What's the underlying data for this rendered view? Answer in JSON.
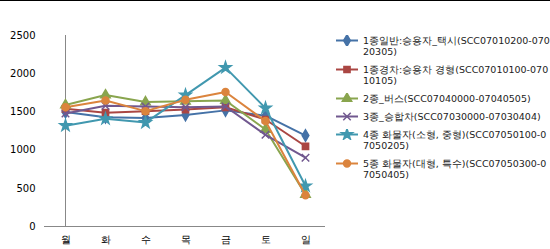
{
  "chart_data": {
    "type": "line",
    "categories": [
      "월",
      "화",
      "수",
      "목",
      "금",
      "토",
      "일"
    ],
    "ylim": [
      0,
      2500
    ],
    "yticks": [
      0,
      500,
      1000,
      1500,
      2000,
      2500
    ],
    "grid": false,
    "legend": "right",
    "series": [
      {
        "name": "1종일반:승용자_택시(SCC07010200-07020305)",
        "color": "#4572a7",
        "marker": "diamond",
        "values": [
          1500,
          1430,
          1420,
          1460,
          1520,
          1450,
          1190
        ]
      },
      {
        "name": "1종경차:승용차 경형(SCC07010100-07010105)",
        "color": "#aa4643",
        "marker": "square",
        "values": [
          1540,
          1490,
          1510,
          1530,
          1560,
          1400,
          1050
        ]
      },
      {
        "name": "2종_버스(SCC07040000-07040505)",
        "color": "#89a54e",
        "marker": "triangle",
        "values": [
          1590,
          1720,
          1630,
          1640,
          1650,
          1270,
          420
        ]
      },
      {
        "name": "3종_승합차(SCC07030000-07030404)",
        "color": "#71588f",
        "marker": "times",
        "values": [
          1480,
          1580,
          1570,
          1560,
          1570,
          1200,
          900
        ]
      },
      {
        "name": "4종 화물자(소형, 중형)(SCC07050100-07050205)",
        "color": "#4198af",
        "marker": "star",
        "values": [
          1320,
          1410,
          1360,
          1720,
          2080,
          1550,
          530
        ]
      },
      {
        "name": "5종 화물자(대형, 특수)(SCC07050300-07050405)",
        "color": "#db843d",
        "marker": "circle",
        "values": [
          1560,
          1650,
          1510,
          1660,
          1760,
          1380,
          410
        ]
      }
    ]
  }
}
